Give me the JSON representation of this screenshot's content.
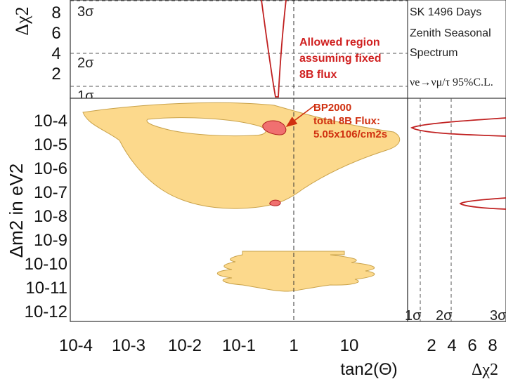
{
  "chart_data": {
    "type": "contour",
    "experiment_label": "SK 1496 Days",
    "analysis_label_line1": "Zenith Seasonal",
    "analysis_label_line2": "Spectrum",
    "oscillation_label": "νe→νμ/τ 95%C.L.",
    "annotation_allowed": {
      "line1": "Allowed region",
      "line2": "assuming fixed",
      "line3": "8B flux"
    },
    "annotation_bp2000": {
      "line1": "BP2000",
      "line2": "total 8B Flux:",
      "line3": "5.05x106/cm2s"
    },
    "top_panel": {
      "ylabel": "Δχ2",
      "yticks": [
        "8",
        "6",
        "4",
        "2"
      ],
      "sigma_labels": [
        "3σ",
        "2σ",
        "1σ"
      ],
      "sigma_levels": [
        9,
        4,
        1
      ]
    },
    "main_panel": {
      "xlabel": "tan2(Θ)",
      "ylabel": "Δm2 in eV2",
      "x_scale": "log",
      "y_scale": "log",
      "xlim": [
        0.0001,
        100
      ],
      "ylim": [
        1e-12,
        0.001
      ],
      "xticks": [
        "10-4",
        "10-3",
        "10-2",
        "10-1",
        "1",
        "10"
      ],
      "yticks": [
        "10-4",
        "10-5",
        "10-6",
        "10-7",
        "10-8",
        "10-9",
        "10-10",
        "10-11",
        "10-12"
      ],
      "reference_line_x": 1,
      "excluded_region_color": "#fcd98c",
      "allowed_region_color": "#f07070"
    },
    "right_panel": {
      "xlabel": "Δχ2",
      "xticks": [
        "2",
        "4",
        "6",
        "8"
      ],
      "sigma_labels": [
        "1σ",
        "2σ",
        "3σ"
      ]
    }
  }
}
